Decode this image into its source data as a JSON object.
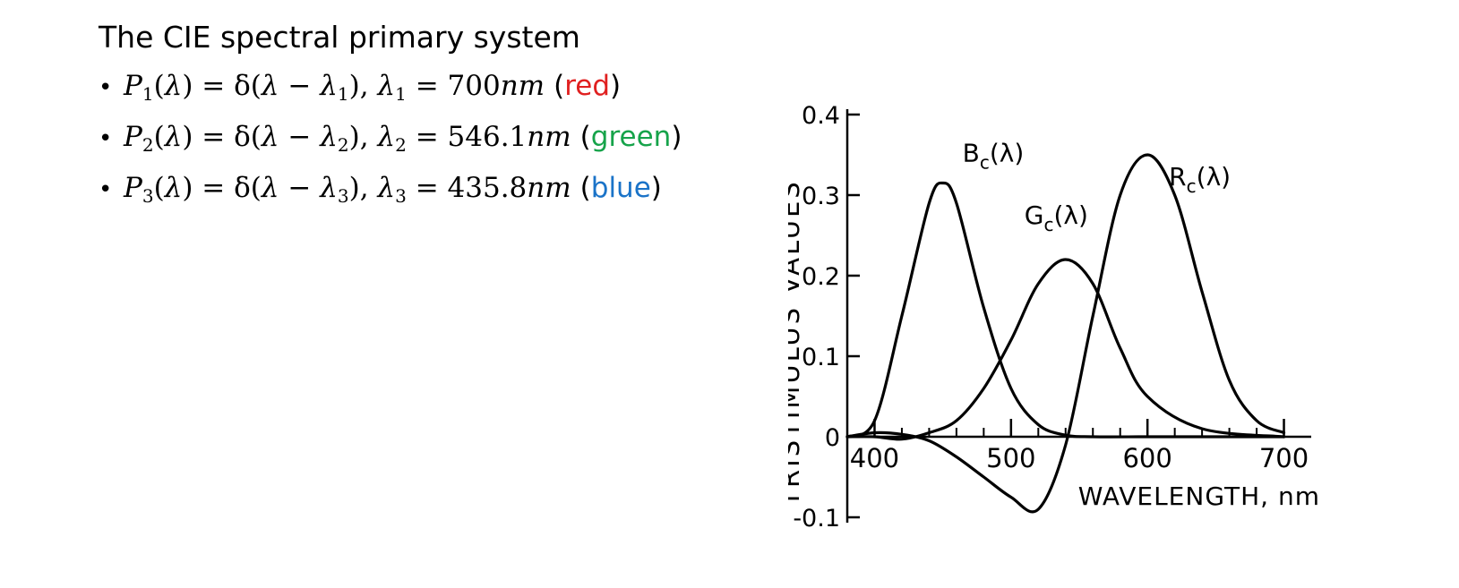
{
  "slide": {
    "title": "The CIE spectral primary system",
    "primaries": [
      {
        "index": "1",
        "lambda_value": "700",
        "color_name": "red",
        "color_hex": "#e02020"
      },
      {
        "index": "2",
        "lambda_value": "546.1",
        "color_name": "green",
        "color_hex": "#16a34a"
      },
      {
        "index": "3",
        "lambda_value": "435.8",
        "color_name": "blue",
        "color_hex": "#1a73c8"
      }
    ],
    "unit": "nm"
  },
  "chart_data": {
    "type": "line",
    "title": "",
    "xlabel": "WAVELENGTH, nm",
    "ylabel": "TRISTIMULUS VALUES",
    "xlim": [
      380,
      720
    ],
    "ylim": [
      -0.1,
      0.4
    ],
    "xticks": [
      "400",
      "500",
      "600",
      "700"
    ],
    "yticks": [
      "-0.1",
      "0",
      "0.1",
      "0.2",
      "0.3",
      "0.4"
    ],
    "grid": false,
    "series": [
      {
        "name": "B_c(λ)",
        "label_base": "B",
        "label_sub": "c",
        "label_arg": "(λ)",
        "x": [
          380,
          400,
          420,
          440,
          450,
          460,
          480,
          500,
          520,
          540,
          560,
          600,
          640,
          700
        ],
        "y": [
          0,
          0.02,
          0.15,
          0.29,
          0.315,
          0.29,
          0.16,
          0.06,
          0.015,
          0.002,
          0,
          0,
          0,
          0
        ]
      },
      {
        "name": "G_c(λ)",
        "label_base": "G",
        "label_sub": "c",
        "label_arg": "(λ)",
        "x": [
          380,
          400,
          420,
          440,
          460,
          480,
          500,
          520,
          540,
          560,
          580,
          600,
          640,
          700
        ],
        "y": [
          0,
          0,
          -0.003,
          0.005,
          0.02,
          0.06,
          0.12,
          0.19,
          0.22,
          0.19,
          0.11,
          0.05,
          0.01,
          0
        ]
      },
      {
        "name": "R_c(λ)",
        "label_base": "R",
        "label_sub": "c",
        "label_arg": "(λ)",
        "x": [
          380,
          400,
          420,
          440,
          460,
          480,
          500,
          520,
          540,
          560,
          580,
          600,
          620,
          640,
          660,
          680,
          700
        ],
        "y": [
          0,
          0.005,
          0.003,
          -0.005,
          -0.025,
          -0.05,
          -0.075,
          -0.09,
          -0.01,
          0.15,
          0.3,
          0.35,
          0.3,
          0.18,
          0.07,
          0.02,
          0.005
        ]
      }
    ]
  }
}
